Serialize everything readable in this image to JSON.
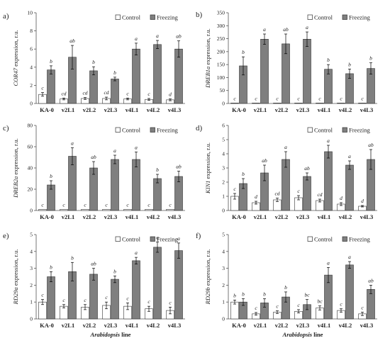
{
  "figure": {
    "xlabel_prefix": "Arabidopsis",
    "xlabel_suffix": " line",
    "legend": [
      "Control",
      "Freezing"
    ],
    "colors": {
      "control": "#ffffff",
      "freezing": "#7f7f7f",
      "edge": "#333333",
      "axis": "#555555",
      "text": "#222222"
    }
  },
  "chart_data": [
    {
      "type": "bar",
      "panel_letter": "a)",
      "gene": "COR47",
      "ylabel_suffix": " expression, r.u.",
      "categories": [
        "KA-0",
        "v2L1",
        "v2L2",
        "v2L3",
        "v4L1",
        "v4L2",
        "v4L3"
      ],
      "ylim": [
        0,
        10
      ],
      "yticks": [
        0,
        2,
        4,
        6,
        8,
        10
      ],
      "series": [
        {
          "name": "Control",
          "values": [
            1.0,
            0.5,
            0.55,
            0.55,
            0.5,
            0.45,
            0.4
          ],
          "errors": [
            0.2,
            0.1,
            0.1,
            0.15,
            0.1,
            0.1,
            0.1
          ],
          "letters": [
            "c",
            "cd",
            "cd",
            "cd",
            "c",
            "c",
            "d"
          ]
        },
        {
          "name": "Freezing",
          "values": [
            3.7,
            5.1,
            3.6,
            2.7,
            6.0,
            6.5,
            6.0
          ],
          "errors": [
            0.45,
            1.3,
            0.45,
            0.2,
            0.65,
            0.45,
            0.9
          ],
          "letters": [
            "b",
            "ab",
            "b",
            "b",
            "a",
            "a",
            "ab"
          ]
        }
      ]
    },
    {
      "type": "bar",
      "panel_letter": "b)",
      "gene": "DREB1a",
      "ylabel_suffix": " expression, r.u.",
      "categories": [
        "KA-0",
        "v2L1",
        "v2L2",
        "v2L3",
        "v4L1",
        "v4L2",
        "v4L3"
      ],
      "ylim": [
        0,
        350
      ],
      "yticks": [
        0,
        50,
        100,
        150,
        200,
        250,
        300,
        350
      ],
      "series": [
        {
          "name": "Control",
          "values": [
            1,
            1,
            1,
            1,
            1,
            1,
            1
          ],
          "errors": [
            0,
            0,
            0,
            0,
            0,
            0,
            0
          ],
          "letters": [
            "c",
            "c",
            "c",
            "c",
            "c",
            "c",
            "c"
          ]
        },
        {
          "name": "Freezing",
          "values": [
            145,
            248,
            230,
            248,
            132,
            115,
            135
          ],
          "errors": [
            35,
            20,
            38,
            28,
            18,
            18,
            22
          ],
          "letters": [
            "b",
            "a",
            "ab",
            "a",
            "b",
            "b",
            "b"
          ]
        }
      ]
    },
    {
      "type": "bar",
      "panel_letter": "c)",
      "gene": "DREB2a",
      "ylabel_suffix": " expression, r.u.",
      "categories": [
        "KA-0",
        "v2L1",
        "v2L2",
        "v2L3",
        "v4L1",
        "v4L2",
        "v4L3"
      ],
      "ylim": [
        0,
        80
      ],
      "yticks": [
        0,
        20,
        40,
        60,
        80
      ],
      "series": [
        {
          "name": "Control",
          "values": [
            1,
            1,
            1,
            1,
            1,
            1,
            1
          ],
          "errors": [
            0,
            0,
            0,
            0,
            0,
            0,
            0
          ],
          "letters": [
            "c",
            "c",
            "c",
            "c",
            "c",
            "c",
            "c"
          ]
        },
        {
          "name": "Freezing",
          "values": [
            24,
            51,
            40,
            48,
            48,
            30,
            32
          ],
          "errors": [
            4,
            8,
            6,
            4,
            7,
            4,
            5
          ],
          "letters": [
            "b",
            "a",
            "ab",
            "a",
            "a",
            "b",
            "ab"
          ]
        }
      ]
    },
    {
      "type": "bar",
      "panel_letter": "d)",
      "gene": "KIN1",
      "ylabel_suffix": " expression, r.u.",
      "categories": [
        "KA-0",
        "v2L1",
        "v2L2",
        "v2L3",
        "v4L1",
        "v4L2",
        "v4L3"
      ],
      "ylim": [
        0,
        6
      ],
      "yticks": [
        0,
        1,
        2,
        3,
        4,
        5,
        6
      ],
      "series": [
        {
          "name": "Control",
          "values": [
            1.0,
            0.55,
            0.75,
            0.9,
            0.7,
            0.45,
            0.3
          ],
          "errors": [
            0.2,
            0.1,
            0.12,
            0.15,
            0.1,
            0.1,
            0.05
          ],
          "letters": [
            "c",
            "d",
            "cd",
            "c",
            "cd",
            "d",
            "d"
          ]
        },
        {
          "name": "Freezing",
          "values": [
            1.9,
            2.65,
            3.6,
            2.4,
            4.15,
            3.2,
            3.6
          ],
          "errors": [
            0.35,
            0.55,
            0.55,
            0.25,
            0.45,
            0.3,
            0.7
          ],
          "letters": [
            "b",
            "ab",
            "a",
            "ab",
            "a",
            "a",
            "ab"
          ]
        }
      ]
    },
    {
      "type": "bar",
      "panel_letter": "e)",
      "gene": "RD29a",
      "ylabel_suffix": " expression, r.u.",
      "categories": [
        "KA-0",
        "v2L1",
        "v2L2",
        "v2L3",
        "v4L1",
        "v4L2",
        "v4L3"
      ],
      "ylim": [
        0,
        5
      ],
      "yticks": [
        0,
        1,
        2,
        3,
        4,
        5
      ],
      "series": [
        {
          "name": "Control",
          "values": [
            1.0,
            0.75,
            0.7,
            0.8,
            0.75,
            0.6,
            0.5
          ],
          "errors": [
            0.15,
            0.1,
            0.15,
            0.2,
            0.2,
            0.15,
            0.2
          ],
          "letters": [
            "c",
            "c",
            "c",
            "c",
            "c",
            "c",
            "c"
          ]
        },
        {
          "name": "Freezing",
          "values": [
            2.5,
            2.8,
            2.65,
            2.35,
            3.45,
            4.25,
            4.05
          ],
          "errors": [
            0.3,
            0.55,
            0.35,
            0.2,
            0.2,
            0.3,
            0.45
          ],
          "letters": [
            "b",
            "b",
            "ab",
            "b",
            "a",
            "a",
            "a"
          ]
        }
      ]
    },
    {
      "type": "bar",
      "panel_letter": "f)",
      "gene": "RD29b",
      "ylabel_suffix": " expression, r.u.",
      "categories": [
        "KA-0",
        "v2L1",
        "v2L2",
        "v2L3",
        "v4L1",
        "v4L2",
        "v4L3"
      ],
      "ylim": [
        0,
        5
      ],
      "yticks": [
        0,
        1,
        2,
        3,
        4,
        5
      ],
      "series": [
        {
          "name": "Control",
          "values": [
            1.0,
            0.3,
            0.4,
            0.45,
            0.65,
            0.5,
            0.3
          ],
          "errors": [
            0.12,
            0.08,
            0.08,
            0.1,
            0.12,
            0.1,
            0.1
          ],
          "letters": [
            "b",
            "c",
            "c",
            "c",
            "bc",
            "c",
            "c"
          ]
        },
        {
          "name": "Freezing",
          "values": [
            1.0,
            0.95,
            1.3,
            0.85,
            2.6,
            3.2,
            1.75
          ],
          "errors": [
            0.2,
            0.25,
            0.3,
            0.3,
            0.45,
            0.2,
            0.25
          ],
          "letters": [
            "b",
            "b",
            "b",
            "bc",
            "a",
            "a",
            "ab"
          ]
        }
      ]
    }
  ]
}
